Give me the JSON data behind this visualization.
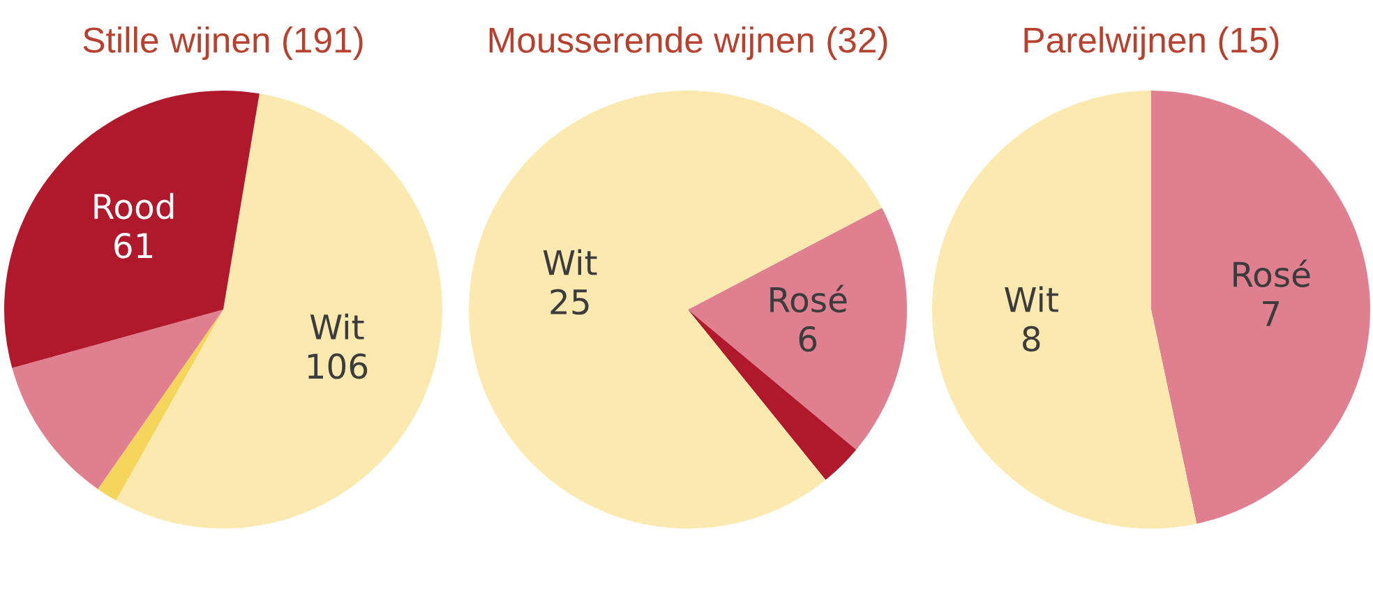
{
  "chart_data": [
    {
      "type": "pie",
      "title": "Stille wijnen (191)",
      "categories": [
        "Wit",
        null,
        null,
        "Rood"
      ],
      "values": [
        106,
        3,
        21,
        61
      ],
      "colors": [
        "#fbe9b0",
        "#f6d55c",
        "#e07f8f",
        "#b0182b"
      ],
      "value_labels": [
        "106",
        null,
        null,
        "61"
      ]
    },
    {
      "type": "pie",
      "title": "Mousserende wijnen (32)",
      "categories": [
        "Rosé",
        null,
        "Wit"
      ],
      "values": [
        6,
        1,
        25
      ],
      "colors": [
        "#e07f8f",
        "#b0182b",
        "#fbe9b0"
      ],
      "value_labels": [
        "6",
        null,
        "25"
      ]
    },
    {
      "type": "pie",
      "title": "Parelwijnen (15)",
      "categories": [
        "Rosé",
        "Wit"
      ],
      "values": [
        7,
        8
      ],
      "colors": [
        "#e07f8f",
        "#fbe9b0"
      ],
      "value_labels": [
        "7",
        "8"
      ]
    }
  ]
}
